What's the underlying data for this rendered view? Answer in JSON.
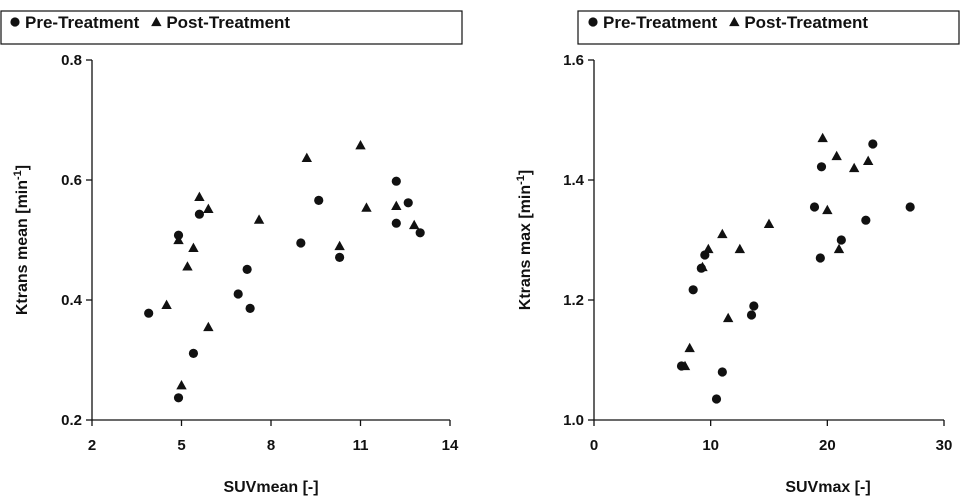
{
  "chart_data": [
    {
      "type": "scatter",
      "legend": {
        "entries": [
          {
            "marker": "circle",
            "label": "Pre-Treatment"
          },
          {
            "marker": "triangle",
            "label": "Post-Treatment"
          }
        ],
        "placement": "top"
      },
      "xlabel": "SUVmean [-]",
      "ylabel": "Ktrans mean [min",
      "ylabel_sup": "-1",
      "ylabel_end": "]",
      "xlim": [
        2,
        14
      ],
      "ylim": [
        0.2,
        0.8
      ],
      "xticks": [
        2,
        5,
        8,
        11,
        14
      ],
      "yticks": [
        0.2,
        0.4,
        0.6,
        0.8
      ],
      "xtick_labels": [
        "2",
        "5",
        "8",
        "11",
        "14"
      ],
      "ytick_labels": [
        "0.2",
        "0.4",
        "0.6",
        "0.8"
      ],
      "grid": false,
      "series": [
        {
          "name": "Pre-Treatment",
          "marker": "circle",
          "points": [
            [
              3.9,
              0.378
            ],
            [
              4.9,
              0.508
            ],
            [
              4.9,
              0.237
            ],
            [
              5.6,
              0.543
            ],
            [
              5.4,
              0.311
            ],
            [
              6.9,
              0.41
            ],
            [
              7.2,
              0.451
            ],
            [
              7.3,
              0.386
            ],
            [
              9.0,
              0.495
            ],
            [
              9.6,
              0.566
            ],
            [
              10.3,
              0.471
            ],
            [
              12.2,
              0.598
            ],
            [
              12.2,
              0.528
            ],
            [
              12.6,
              0.562
            ],
            [
              13.0,
              0.512
            ]
          ]
        },
        {
          "name": "Post-Treatment",
          "marker": "triangle",
          "points": [
            [
              4.5,
              0.392
            ],
            [
              4.9,
              0.5
            ],
            [
              5.0,
              0.258
            ],
            [
              5.2,
              0.456
            ],
            [
              5.4,
              0.487
            ],
            [
              5.6,
              0.572
            ],
            [
              5.9,
              0.552
            ],
            [
              5.9,
              0.355
            ],
            [
              7.6,
              0.534
            ],
            [
              9.2,
              0.637
            ],
            [
              10.3,
              0.49
            ],
            [
              11.0,
              0.658
            ],
            [
              11.2,
              0.554
            ],
            [
              12.2,
              0.557
            ],
            [
              12.8,
              0.525
            ]
          ]
        }
      ]
    },
    {
      "type": "scatter",
      "legend": {
        "entries": [
          {
            "marker": "circle",
            "label": "Pre-Treatment"
          },
          {
            "marker": "triangle",
            "label": "Post-Treatment"
          }
        ],
        "placement": "top"
      },
      "xlabel": "SUVmax [-]",
      "ylabel": "Ktrans max [min",
      "ylabel_sup": "-1",
      "ylabel_end": "]",
      "xlim": [
        0,
        30
      ],
      "ylim": [
        1.0,
        1.6
      ],
      "xticks": [
        0,
        10,
        20,
        30
      ],
      "yticks": [
        1.0,
        1.2,
        1.4,
        1.6
      ],
      "xtick_labels": [
        "0",
        "10",
        "20",
        "30"
      ],
      "ytick_labels": [
        "1.0",
        "1.2",
        "1.4",
        "1.6"
      ],
      "grid": false,
      "series": [
        {
          "name": "Pre-Treatment",
          "marker": "circle",
          "points": [
            [
              7.5,
              1.09
            ],
            [
              8.5,
              1.217
            ],
            [
              9.2,
              1.253
            ],
            [
              9.5,
              1.275
            ],
            [
              10.5,
              1.035
            ],
            [
              11.0,
              1.08
            ],
            [
              13.5,
              1.175
            ],
            [
              13.7,
              1.19
            ],
            [
              18.9,
              1.355
            ],
            [
              19.4,
              1.27
            ],
            [
              19.5,
              1.422
            ],
            [
              21.2,
              1.3
            ],
            [
              23.3,
              1.333
            ],
            [
              23.9,
              1.46
            ],
            [
              27.1,
              1.355
            ]
          ]
        },
        {
          "name": "Post-Treatment",
          "marker": "triangle",
          "points": [
            [
              7.8,
              1.09
            ],
            [
              8.2,
              1.12
            ],
            [
              9.3,
              1.255
            ],
            [
              9.8,
              1.285
            ],
            [
              11.0,
              1.31
            ],
            [
              11.5,
              1.17
            ],
            [
              12.5,
              1.285
            ],
            [
              15.0,
              1.327
            ],
            [
              19.6,
              1.47
            ],
            [
              20.0,
              1.35
            ],
            [
              20.8,
              1.44
            ],
            [
              21.0,
              1.285
            ],
            [
              22.3,
              1.42
            ],
            [
              23.5,
              1.432
            ]
          ]
        }
      ]
    }
  ]
}
